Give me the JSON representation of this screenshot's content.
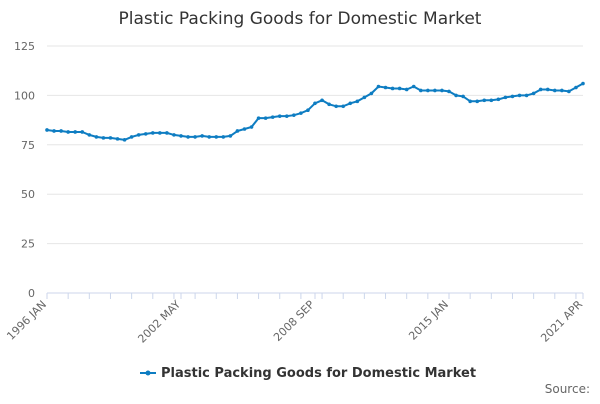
{
  "chart_data": {
    "type": "line",
    "title": "Plastic Packing Goods for Domestic Market",
    "source": "Source:",
    "categories": [
      "1996 JAN",
      null,
      null,
      null,
      null,
      null,
      null,
      null,
      null,
      null,
      null,
      null,
      null,
      null,
      null,
      null,
      null,
      null,
      null,
      "2002 MAY",
      null,
      null,
      null,
      null,
      null,
      null,
      null,
      null,
      null,
      null,
      null,
      null,
      null,
      null,
      null,
      null,
      null,
      null,
      "2008 SEP",
      null,
      null,
      null,
      null,
      null,
      null,
      null,
      null,
      null,
      null,
      null,
      null,
      null,
      null,
      null,
      null,
      null,
      null,
      "2015 JAN",
      null,
      null,
      null,
      null,
      null,
      null,
      null,
      null,
      null,
      null,
      null,
      null,
      null,
      null,
      null,
      null,
      null,
      null,
      "2021 APR"
    ],
    "series": [
      {
        "name": "Plastic Packing Goods for Domestic Market",
        "color": "#0e7dc2",
        "values": [
          82.5,
          82,
          82,
          81.5,
          81.5,
          81.5,
          80,
          79,
          78.5,
          78.5,
          78,
          77.5,
          79,
          80,
          80.5,
          81,
          81,
          81,
          80,
          79.5,
          79,
          79,
          79.5,
          79,
          79,
          79,
          79.5,
          82,
          83,
          84,
          88.5,
          88.5,
          89,
          89.5,
          89.5,
          90,
          91,
          92.5,
          96,
          97.5,
          95.5,
          94.5,
          94.5,
          96,
          97,
          99,
          101,
          104.5,
          104,
          103.5,
          103.5,
          103,
          104.5,
          102.5,
          102.5,
          102.5,
          102.5,
          102,
          100,
          99.5,
          97,
          97,
          97.5,
          97.5,
          98,
          99,
          99.5,
          100,
          100,
          101,
          103,
          103,
          102.5,
          102.5,
          102,
          104,
          106
        ]
      }
    ],
    "ylim": [
      0,
      125
    ],
    "yticks": [
      0,
      25,
      50,
      75,
      100,
      125
    ],
    "grid": true,
    "legend": "bottom"
  }
}
